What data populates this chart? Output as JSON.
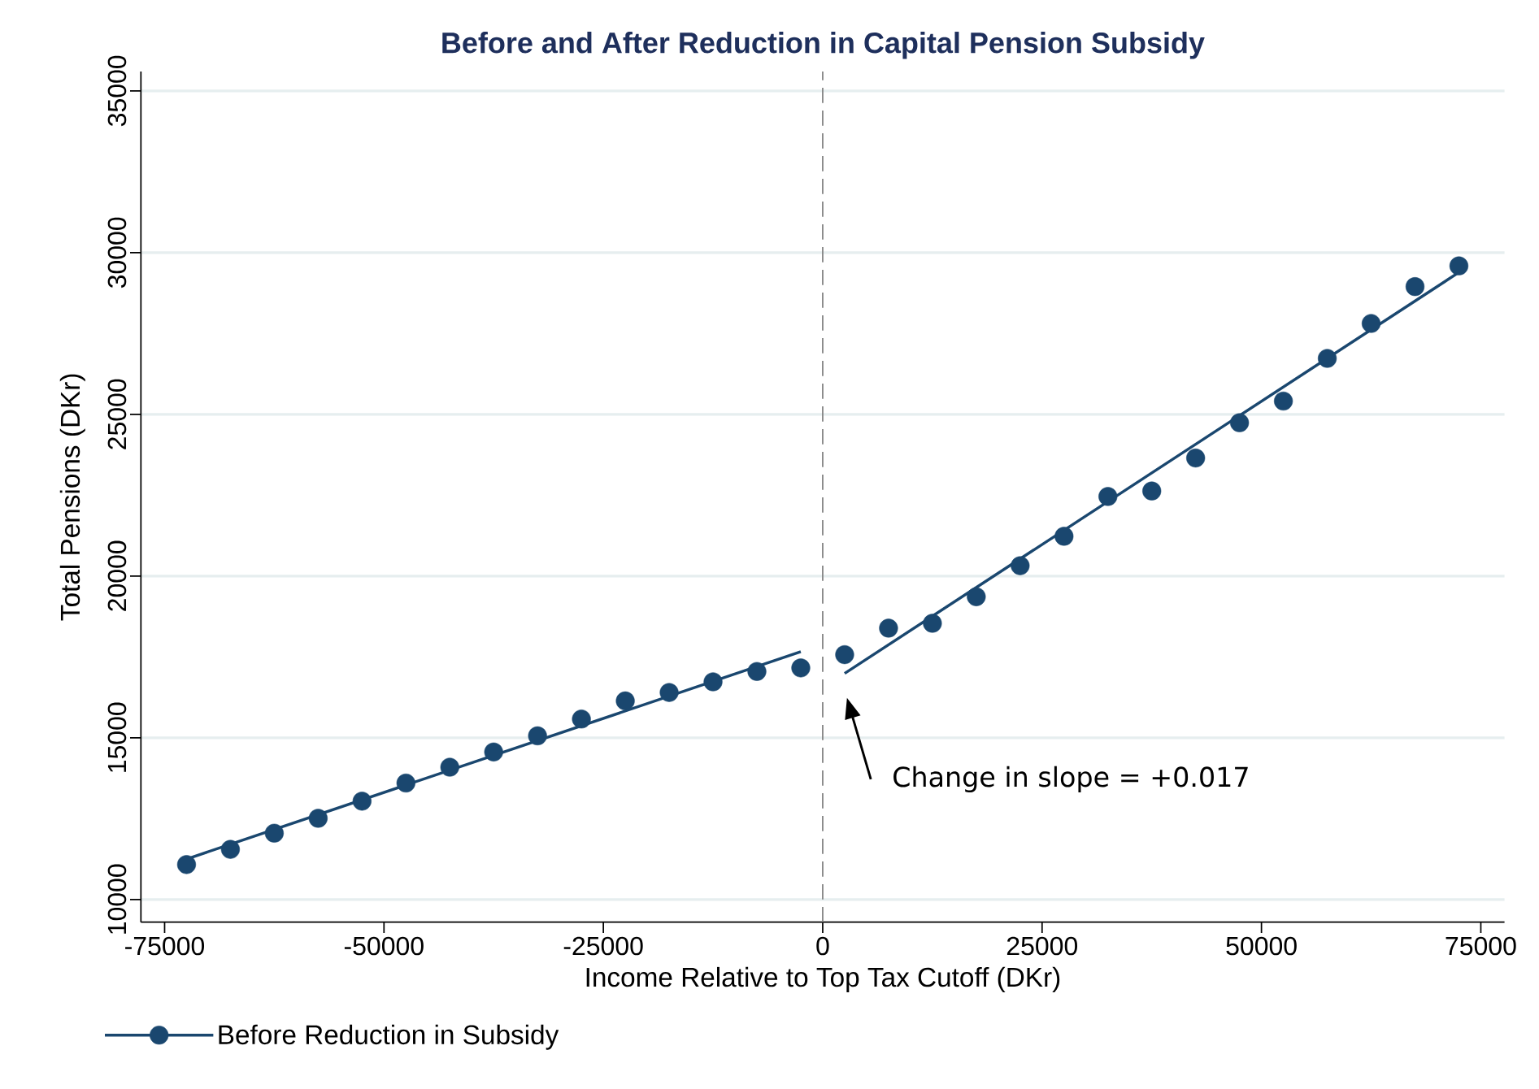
{
  "chart_data": {
    "type": "scatter",
    "title": "Before and After Reduction in Capital Pension Subsidy",
    "xlabel": "Income Relative to Top Tax Cutoff (DKr)",
    "ylabel": "Total Pensions (DKr)",
    "xlim": [
      -77700,
      77700
    ],
    "ylim": [
      9300,
      35600
    ],
    "xticks": [
      -75000,
      -50000,
      -25000,
      0,
      25000,
      50000,
      75000
    ],
    "yticks": [
      10000,
      15000,
      20000,
      25000,
      30000,
      35000
    ],
    "grid": "y",
    "legend": "bottom left",
    "ref_lines": [
      {
        "axis": "x",
        "value": 0,
        "color": "#808080",
        "line_style": "dashed"
      }
    ],
    "annotations": [
      "Change in slope = +0.017"
    ],
    "series": [
      {
        "name": "Before Reduction in Subsidy",
        "marker": "circle",
        "color": "#1a476f",
        "x": [
          -72500,
          -67500,
          -62500,
          -57500,
          -52500,
          -47500,
          -42500,
          -37500,
          -32500,
          -27500,
          -22500,
          -17500,
          -12500,
          -7500,
          -2500,
          2500,
          7500,
          12500,
          17500,
          22500,
          27500,
          32500,
          37500,
          42500,
          47500,
          52500,
          57500,
          62500,
          67500,
          72500
        ],
        "values": [
          11080,
          11550,
          12050,
          12510,
          13040,
          13600,
          14090,
          14560,
          15060,
          15580,
          16140,
          16400,
          16730,
          17050,
          17160,
          17570,
          18390,
          18540,
          19360,
          20320,
          21230,
          22460,
          22630,
          23650,
          24740,
          25410,
          26730,
          27810,
          28950,
          29590
        ]
      },
      {
        "type": "line",
        "color": "#1a476f",
        "x": [
          -72500,
          -2500
        ],
        "values": [
          11250,
          17660
        ]
      },
      {
        "type": "line",
        "color": "#1a476f",
        "x": [
          2500,
          72500
        ],
        "values": [
          16990,
          29390
        ]
      }
    ]
  }
}
